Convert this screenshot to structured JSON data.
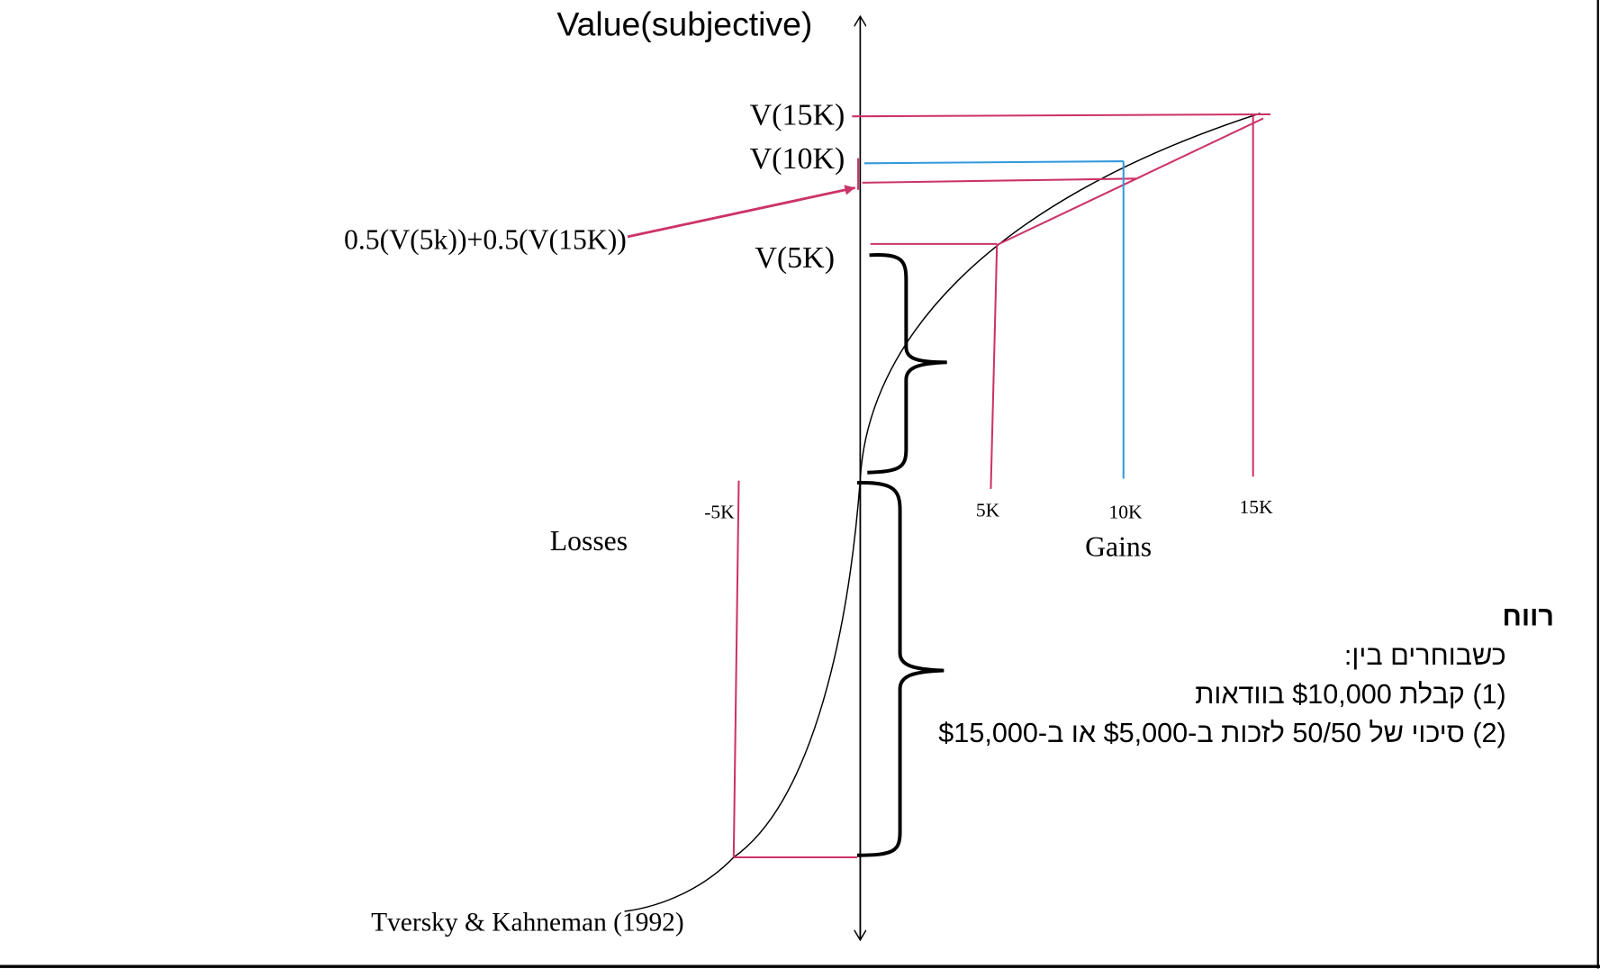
{
  "axis": {
    "y_label": "Value(subjective)",
    "gains_label": "Gains",
    "losses_label": "Losses"
  },
  "ticks": {
    "x": [
      "-5K",
      "5K",
      "10K",
      "15K"
    ],
    "y": [
      "V(15K)",
      "V(10K)",
      "V(5K)"
    ]
  },
  "annotation": {
    "expected_value": "0.5(V(5k))+0.5(V(15K))",
    "citation": "Tversky & Kahneman (1992)"
  },
  "hebrew": {
    "title": "רווח",
    "lines": [
      "כשבוחרים בין:",
      "(1) קבלת $10,000 בוודאות",
      "(2) סיכוי של 50/50 לזכות ב-$5,000 או ב-$15,000"
    ]
  },
  "colors": {
    "pink": "#cc3366",
    "blue": "#3399dd",
    "axis": "#000000"
  }
}
